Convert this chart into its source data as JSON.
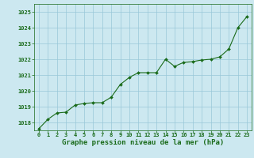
{
  "x": [
    0,
    1,
    2,
    3,
    4,
    5,
    6,
    7,
    8,
    9,
    10,
    11,
    12,
    13,
    14,
    15,
    16,
    17,
    18,
    19,
    20,
    21,
    22,
    23
  ],
  "y": [
    1017.6,
    1018.2,
    1018.6,
    1018.65,
    1019.1,
    1019.2,
    1019.25,
    1019.25,
    1019.6,
    1020.4,
    1020.85,
    1021.15,
    1021.15,
    1021.15,
    1022.0,
    1021.55,
    1021.8,
    1021.85,
    1021.95,
    1022.0,
    1022.15,
    1022.65,
    1024.0,
    1024.7
  ],
  "ylim": [
    1017.5,
    1025.5
  ],
  "yticks": [
    1018,
    1019,
    1020,
    1021,
    1022,
    1023,
    1024,
    1025
  ],
  "xticks": [
    0,
    1,
    2,
    3,
    4,
    5,
    6,
    7,
    8,
    9,
    10,
    11,
    12,
    13,
    14,
    15,
    16,
    17,
    18,
    19,
    20,
    21,
    22,
    23
  ],
  "xlabel": "Graphe pression niveau de la mer (hPa)",
  "line_color": "#1a6b1a",
  "marker": "D",
  "marker_size": 2.0,
  "bg_color": "#cce8f0",
  "grid_color": "#99c8d8",
  "text_color": "#1a6b1a",
  "xlabel_fontsize": 6.5,
  "tick_fontsize": 5.0
}
